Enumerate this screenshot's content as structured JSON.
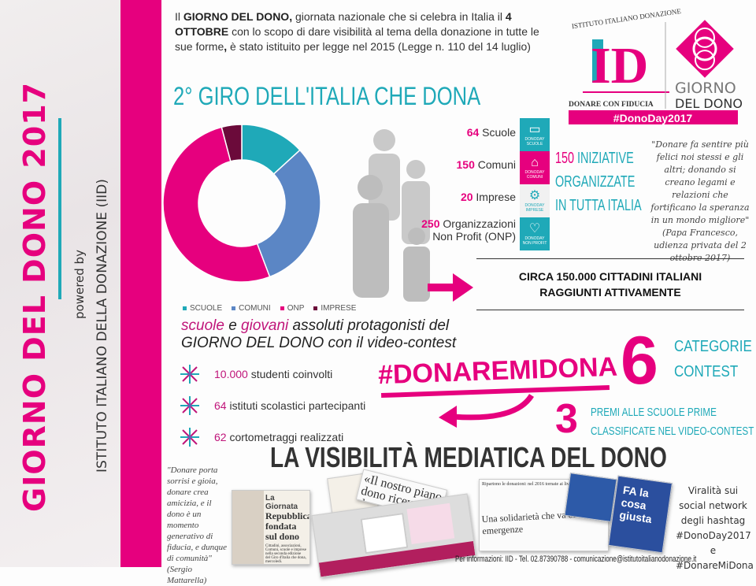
{
  "sidebar": {
    "title": "GIORNO DEL DONO 2017",
    "powered_by": "powered by",
    "institute": "ISTITUTO ITALIANO DELLA DONAZIONE (IID)"
  },
  "intro": {
    "p1": "Il ",
    "b1": "GIORNO DEL DONO,",
    "p2": " giornata nazionale che si celebra in Italia il ",
    "b2": "4 OTTOBRE",
    "p3": " con lo scopo di dare visibilità al tema della donazione in tutte le sue forme",
    "b3": ",",
    "p4": " è stato istituito per legge nel 2015 (Legge n. 110 del 14 luglio)"
  },
  "title": "2° GIRO DELL'ITALIA CHE DONA",
  "logo": {
    "arc": "ISTITUTO ITALIANO DONAZIONE",
    "letters": "ID",
    "tagline": "DONARE CON FIDUCIA",
    "brand1": "GIORNO",
    "brand2": "DEL DONO",
    "hashtag": "#DonoDay2017"
  },
  "colors": {
    "pink": "#e6007e",
    "teal": "#1fa9b8",
    "blue": "#5b86c5",
    "dark": "#6b0a3a"
  },
  "chart_data": {
    "type": "pie",
    "style": "donut",
    "categories": [
      "SCUOLE",
      "COMUNI",
      "ONP",
      "IMPRESE"
    ],
    "values": [
      64,
      150,
      250,
      20
    ],
    "colors": [
      "#1fa9b8",
      "#5b86c5",
      "#e6007e",
      "#6b0a3a"
    ],
    "legend": "bottom"
  },
  "stats": [
    {
      "num": "64",
      "label": " Scuole",
      "icon": "book-icon",
      "tile": "SCUOLE"
    },
    {
      "num": "150",
      "label": " Comuni",
      "icon": "building-icon",
      "tile": "COMUNI"
    },
    {
      "num": "20",
      "label": " Imprese",
      "icon": "gears-icon",
      "tile": "IMPRESE"
    },
    {
      "num": "250",
      "label": " Organizzazioni",
      "label2": "Non Profit (ONP)",
      "icon": "heart-icon",
      "tile": "NON PROFIT"
    }
  ],
  "tile_prefix": "DONODAY",
  "initiatives": {
    "num": "150",
    "l1": " INIZIATIVE",
    "l2": "ORGANIZZATE",
    "l3": "IN TUTTA ITALIA"
  },
  "papa_quote": "\"Donare fa sentire più felici noi stessi e gli altri; donando si creano legami e relazioni che fortificano la speranza in un mondo migliore\" (Papa Francesco, udienza privata del 2 ottobre 2017)",
  "citizens": {
    "l1": "CIRCA 150.000 CITTADINI ITALIANI",
    "l2": "RAGGIUNTI ATTIVAMENTE"
  },
  "protagonists": {
    "w1": "scuole",
    "w2": " e ",
    "w3": "giovani",
    "w4": " assoluti protagonisti del",
    "l2": "GIORNO DEL DONO",
    "l2b": " con il video-contest"
  },
  "bullets": [
    {
      "num": "10.000",
      "text": " studenti coinvolti"
    },
    {
      "num": "64",
      "text": " istituti scolastici partecipanti"
    },
    {
      "num": "62",
      "text": " cortometraggi realizzati"
    }
  ],
  "contest": {
    "hashtag": "#DONAREMIDONA",
    "six": "6",
    "cat1": "CATEGORIE",
    "cat2": "CONTEST",
    "three": "3",
    "p1": "PREMI ALLE SCUOLE PRIME",
    "p2": "CLASSIFICATE NEL VIDEO-CONTEST"
  },
  "media": {
    "title": "LA VISIBILITÀ MEDIATICA DEL DONO",
    "quote": "\"Donare porta sorrisi e gioia, donare crea amicizia, e il dono è un momento generativo di fiducia, e dunque di comunità\" (Sergio Mattarella)",
    "news1_kicker": "La Giornata",
    "news1_head": "Repubblica fondata sul dono",
    "news1_body": "Cittadini, associazioni, Comuni, scuole e imprese nella seconda edizione del Giro d'Italia che dona, mercoledì.",
    "news2_head": "«Il nostro piano dono ricevuto da con",
    "news3_top": "Ripartono le donazioni: nel 2016 tornate ai livelli pre-crisi",
    "news3_head": "Una solidarietà che va oltre le emergenze",
    "tv2_text": "FA la cosa giusta",
    "viral": "Viralità sui social network degli hashtag #DonoDay2017 e #DonareMiDona"
  },
  "footer": "Per informazioni: IID - Tel. 02.87390788 - comunicazione@istitutoitalianodonazione.it"
}
